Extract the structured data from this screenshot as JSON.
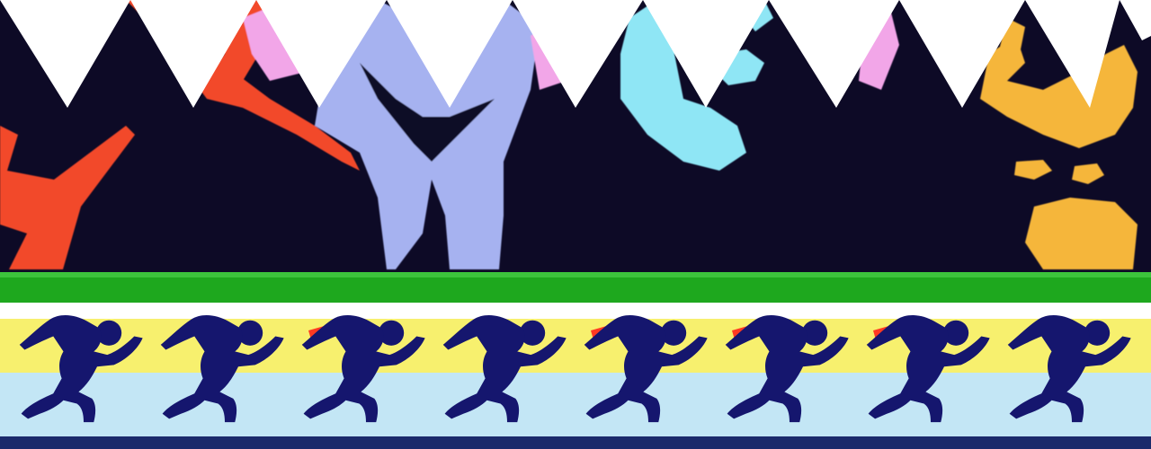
{
  "banner": {
    "description_colors": {
      "sky": "#0d0a26",
      "zigzag": "#ffffff",
      "grass": "#1ea81e",
      "yellow_band": "#f7f06e",
      "blue_band": "#c3e6f5",
      "runner": "#15166e",
      "baton": "#ff3a22",
      "shape_red": "#f24a2a",
      "shape_pink": "#f2a6e8",
      "shape_lavender": "#a6b2f0",
      "shape_cyan": "#8fe6f5",
      "shape_gold": "#f5b63a",
      "bottom_line": "#1b2a6b"
    },
    "runner_count": 8,
    "runners": [
      {
        "baton": false
      },
      {
        "baton": true
      },
      {
        "baton": false
      },
      {
        "baton": true
      },
      {
        "baton": true
      },
      {
        "baton": true
      },
      {
        "baton": false
      },
      {
        "baton": true
      }
    ]
  }
}
